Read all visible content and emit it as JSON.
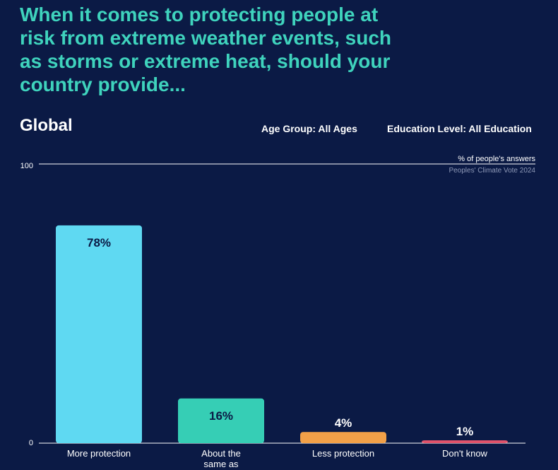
{
  "headline": "When it comes to protecting people at risk from extreme weather events, such as storms or extreme heat, should your country provide...",
  "region": "Global",
  "filters": {
    "age_group": "Age Group: All Ages",
    "education": "Education Level: All Education"
  },
  "colors": {
    "background": "#0b1a45",
    "headline": "#3fd3bd",
    "more_protection": "#5fd9f2",
    "about_same": "#36ceb5",
    "less_protection": "#f2a048",
    "dont_know": "#e0536b"
  },
  "chart_data": {
    "type": "bar",
    "title": "",
    "ylabel": "% of people's answers",
    "source": "Peoples' Climate Vote 2024",
    "ylim": [
      0,
      100
    ],
    "yticks": [
      "100",
      "0"
    ],
    "categories": [
      "More protection",
      "About the same as",
      "Less protection",
      "Don't know"
    ],
    "values": [
      78,
      16,
      4,
      1
    ],
    "value_labels": [
      "78%",
      "16%",
      "4%",
      "1%"
    ],
    "bar_colors": [
      "#5fd9f2",
      "#36ceb5",
      "#f2a048",
      "#e0536b"
    ],
    "grid": false
  }
}
